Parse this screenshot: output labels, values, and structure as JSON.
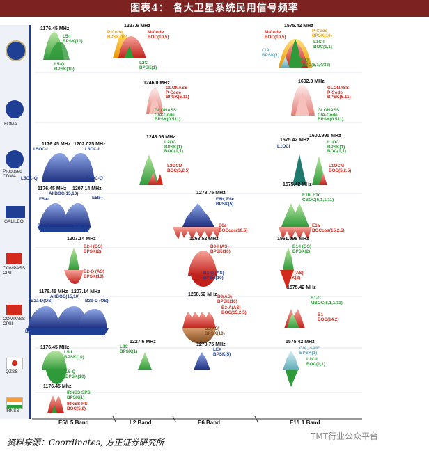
{
  "header": {
    "title": "图表4： 各大卫星系统民用信号频率"
  },
  "systems": [
    {
      "id": "gps",
      "label": ""
    },
    {
      "id": "glonass_fdma",
      "label": "FDMA"
    },
    {
      "id": "glonass_cdma",
      "label": "Proposed\nCDMA"
    },
    {
      "id": "galileo",
      "label": "GALILEO"
    },
    {
      "id": "compass2",
      "label": "COMPASS\nCPII"
    },
    {
      "id": "compass3",
      "label": "COMPASS\nCPIII"
    },
    {
      "id": "qzss",
      "label": "QZSS"
    },
    {
      "id": "irnss",
      "label": "IRNSS"
    }
  ],
  "bands": [
    "E5/L5 Band",
    "L2 Band",
    "E6 Band",
    "E1/L1 Band"
  ],
  "signals": {
    "gps_l5": {
      "freq": "1176.45 MHz",
      "i": "L5-I\nBPSK(10)",
      "q": "L5-Q\nBPSK(10)"
    },
    "gps_l2": {
      "freq": "1227.6 MHz",
      "p": "P-Code\nBPSK(10)",
      "m": "M-Code\nBOC(10,5)",
      "c": "L2C\nBPSK(1)"
    },
    "gps_l1": {
      "freq": "1575.42 MHz",
      "m": "M-Code\nBOC(10,5)",
      "p": "P-Code\nBPSK(10)",
      "l1c": "L1C-I\nBOC(1,1)",
      "ca": "C/A\nBPSK(1)",
      "l1cq": "L1C-Q\nTMBOC(6,1,4/33)"
    },
    "glo_l2": {
      "freq": "1246.0 MHz",
      "p": "GLONASS\nP-Code\nBPSK(5.11)",
      "ca": "GLONASS\nC/A-Code\nBPSK(0.511)"
    },
    "glo_l1": {
      "freq": "1602.0 MHz",
      "p": "GLONASS\nP-Code\nBPSK(5.11)",
      "ca": "GLONASS\nC/A-Code\nBPSK(0.511)"
    },
    "glo_l5": {
      "freq1": "1176.45 MHz",
      "freq2": "1202.025 MHz",
      "l5oci": "L5OC-I",
      "l3oci": "L3OC-I",
      "l5ocq": "L5OC-Q",
      "l3ocq": "L3OC-Q"
    },
    "glo_l2c": {
      "freq": "1248.06 MHz",
      "oc": "L2OC\nBPSK(1)\nBOC(1,1)",
      "ocm": "L2OCM\nBOC(5,2.5)"
    },
    "glo_l1c": {
      "freq1": "1575.42 MHz",
      "freq2": "1600.995 MHz",
      "l1oci": "L1OCI",
      "l1oc": "L1OC\nBPSK(1)\nBOC(1,1)",
      "l1ocm": "L1OCM\nBOC(5,2.5)"
    },
    "gal_e5": {
      "freq1": "1176.45 MHz",
      "freq2": "1207.14 MHz",
      "alt": "AltBOC(15,10)",
      "e5ai": "E5a-I",
      "e5bi": "E5b-I",
      "e5aq": "E5a-Q",
      "e5bq": "E5b-Q"
    },
    "gal_e6": {
      "freq": "1278.75 MHz",
      "e6": "E6b, E6c\nBPSK(5)",
      "e6a": "E6a\nBOCcos(10,5)"
    },
    "gal_e1": {
      "freq": "1575.42 MHz",
      "e1": "E1b, E1c\nCBOC(6,1,1/11)",
      "e1a": "E1a\nBOCcos(15,2.5)"
    },
    "cp2_b2": {
      "freq": "1207.14 MHz",
      "os": "B2-I (OS)\nBPSK(2)",
      "as": "B2-Q (AS)\nBPSK(10)"
    },
    "cp2_b3": {
      "freq": "1268.52 MHz",
      "i": "B3-I (AS)\nBPSK(10)",
      "q": "B3-Q (AS)\nBPSK(10)"
    },
    "cp2_b1": {
      "freq": "1561.098 MHz",
      "os": "B1-I (OS)\nBPSK(2)",
      "as": "B1-Q (AS)\nBPSK(2)"
    },
    "cp3_b2": {
      "freq1": "1176.45 MHz",
      "freq2": "1207.14 MHz",
      "alt": "AltBOC(15,10)",
      "b2ad": "B2a-D(OS)",
      "b2bd": "B2b-D (OS)",
      "b2ap": "B2a-P(OS)",
      "b2bp": "B2b-P (OS)"
    },
    "cp3_b3": {
      "freq": "1268.52 MHz",
      "b3": "B3(AS)\nBPSK(10)",
      "b3a": "B3-A(AS)\nBOC(15,2.5)",
      "b3b": "B3(AS)\nBPSK(10)"
    },
    "cp3_b1": {
      "freq": "1575.42 MHz",
      "b1c": "B1-C\nMBOC(6,1,1/11)",
      "b1": "B1\nBOC(14,2)"
    },
    "qz_l5": {
      "freq": "1176.45 MHz",
      "i": "L5-I\nBPSK(10)",
      "q": "L5-Q\nBPSK(10)"
    },
    "qz_l2": {
      "freq": "1227.6 MHz",
      "c": "L2C\nBPSK(1)"
    },
    "qz_e6": {
      "freq": "1278.75 MHz",
      "lex": "LEX\nBPSK(5)"
    },
    "qz_l1": {
      "freq": "1575.42 MHz",
      "ca": "C/A, SAIF\nBPSK(1)",
      "l1c": "L1C-I\nBOC(1,1)"
    },
    "ir_l5": {
      "freq": "1176.45 Mhz",
      "sps": "IRNSS SPS\nBPSK(1)",
      "rs": "IRNSS RS\nBOC(5,2)"
    }
  },
  "footer": {
    "source": "资料来源：Coordinates, 方正证券研究所",
    "watermark": "TMT行业公众平台"
  },
  "colors": {
    "banner": "#7c2322",
    "green": "#2f9a3a",
    "red": "#d42a1e",
    "blue": "#1f3f95",
    "orange": "#f2a200",
    "cyan": "#5fa9b8",
    "brown": "#7c4a1e"
  }
}
